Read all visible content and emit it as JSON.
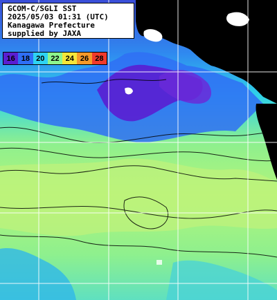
{
  "title_lines": [
    "GCOM-C/SGLI SST",
    "2025/05/03 01:31 (UTC)",
    "Kanagawa Prefecture",
    "supplied by JAXA"
  ],
  "legend": [
    {
      "label": "16",
      "color": "#5a1ed2"
    },
    {
      "label": "18",
      "color": "#2f6ef5"
    },
    {
      "label": "20",
      "color": "#2fd3f2"
    },
    {
      "label": "22",
      "color": "#8ef58c"
    },
    {
      "label": "24",
      "color": "#f5e63a"
    },
    {
      "label": "26",
      "color": "#f59a2a"
    },
    {
      "label": "28",
      "color": "#f03a2a"
    }
  ],
  "colors": {
    "land": "#000000",
    "cloud": "#ffffff",
    "gridline": "#ffffff"
  }
}
